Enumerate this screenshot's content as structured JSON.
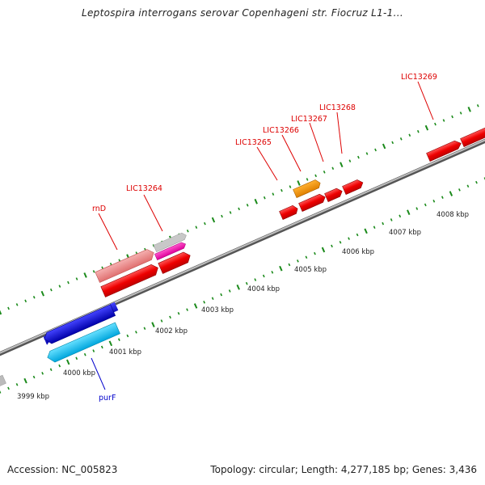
{
  "title": "Leptospira interrogans serovar Copenhageni str. Fiocruz L1-1...",
  "footer": {
    "accession": "Accession: NC_005823",
    "summary": "Topology: circular; Length: 4,277,185 bp; Genes: 3,436"
  },
  "scale_labels": [
    "3999 kbp",
    "4000 kbp",
    "4001 kbp",
    "4002 kbp",
    "4003 kbp",
    "4004 kbp",
    "4005 kbp",
    "4006 kbp",
    "4007 kbp",
    "4008 kbp"
  ],
  "gene_labels": [
    "rnD",
    "LIC13264",
    "LIC13265",
    "LIC13266",
    "LIC13267",
    "LIC13268",
    "LIC13269",
    "purF"
  ],
  "colors": {
    "backbone": "#8a8a8a",
    "tick": "#1a8a1a",
    "forward_label": "#dd0000",
    "reverse_label": "#0000cc"
  }
}
